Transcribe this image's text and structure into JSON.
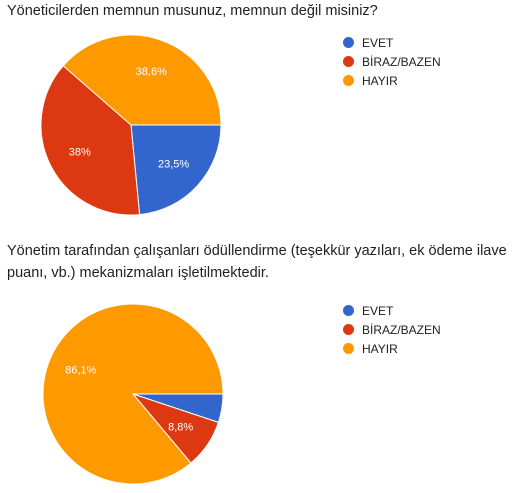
{
  "colors": {
    "EVET": "#3366cc",
    "BİRAZ/BAZEN": "#dc3912",
    "HAYIR": "#ff9900"
  },
  "chart_data": [
    {
      "type": "pie",
      "title": "Yöneticilerden memnun musunuz, memnun değil misiniz?",
      "categories": [
        "EVET",
        "BİRAZ/BAZEN",
        "HAYIR"
      ],
      "values": [
        23.5,
        38,
        38.6
      ],
      "data_labels": [
        "23,5%",
        "38%",
        "38,6%"
      ],
      "legend": "right",
      "legend_entries": [
        "EVET",
        "BİRAZ/BAZEN",
        "HAYIR"
      ]
    },
    {
      "type": "pie",
      "title": "Yönetim tarafından çalışanları ödüllendirme (teşekkür yazıları, ek ödeme ilave puanı, vb.) mekanizmaları işletilmektedir.",
      "categories": [
        "EVET",
        "BİRAZ/BAZEN",
        "HAYIR"
      ],
      "values": [
        5.1,
        8.8,
        86.1
      ],
      "data_labels": [
        "",
        "8,8%",
        "86,1%"
      ],
      "legend": "right",
      "legend_entries": [
        "EVET",
        "BİRAZ/BAZEN",
        "HAYIR"
      ]
    }
  ]
}
